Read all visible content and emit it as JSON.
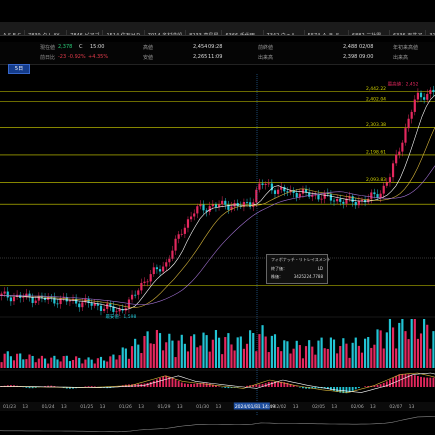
{
  "tabs": [
    {
      "label": "A S E C"
    },
    {
      "label": "7839 ク L AY..."
    },
    {
      "label": "7846 ピアゴ"
    },
    {
      "label": "1514 住石ＨＤ"
    },
    {
      "label": "7014 名村造船"
    },
    {
      "label": "8233 高島屋"
    },
    {
      "label": "6366 千代田..."
    },
    {
      "label": "7342 ウェル..."
    },
    {
      "label": "5574 Ａ Ｂ Ｅ..."
    },
    {
      "label": "6882 三社電..."
    },
    {
      "label": "6336 石井ア"
    },
    {
      "label": "3133 海帆"
    },
    {
      "label": "1557 Ｎ Ｆ..."
    }
  ],
  "info": {
    "current_label": "現在値",
    "current_value": "2,378",
    "current_flag": "C",
    "current_time": "15:00",
    "change_label": "前日比",
    "change_value": "-23",
    "change_pct": "-0.92%",
    "change_pct2": "+4.35%",
    "high_label": "高値",
    "high_value": "2,454",
    "high_time": "09:28",
    "low_label": "安値",
    "low_value": "2,265",
    "low_time": "11:09",
    "prevclose_label": "前終値",
    "prevclose_value": "",
    "volume_label": "出来高",
    "ytd_high_label": "年初来高値",
    "ytd_high_value": "2,488",
    "ytd_high_date": "02/08",
    "ytd_low_value": "2,398",
    "ytd_low_time": "09:00",
    "ytd_low_label": "年初来安値",
    "turnover_label": "出来高"
  },
  "period_label": "5日",
  "tooltip": {
    "title": "フィボナッチ・リトレイスメント",
    "row1_label": "終了価：",
    "row1_value": "LD",
    "row2_label": "株価：",
    "row2_value": "3425224.7788"
  },
  "colors": {
    "up": "#e3285e",
    "down": "#22c4d4",
    "fib": "#d6d600",
    "ma_short": "#ffffff",
    "ma_mid": "#d6b53a",
    "ma_long": "#a070d0",
    "crosshair": "#3a90e0"
  },
  "chart_data": {
    "type": "candlestick",
    "x_tick_labels": [
      "01/23",
      "13",
      "01/24",
      "13",
      "01/25",
      "13",
      "01/26",
      "13",
      "01/29",
      "13",
      "01/30",
      "13",
      "2024/01/31 14:49",
      "13",
      "02/02",
      "13",
      "02/05",
      "13",
      "02/06",
      "13",
      "02/07",
      "13"
    ],
    "fib_levels": [
      "2,442.22",
      "2,402.04",
      "2,303.38",
      "2,198.61",
      "2,093.83"
    ],
    "fib_level_values": [
      2442.22,
      2402.04,
      2303.38,
      2198.61,
      2093.83
    ],
    "annotations": [
      {
        "label": "最安値：1,598",
        "x_frac": 0.27,
        "price": 1598
      },
      {
        "label": "最高値：2,452",
        "x_frac": 0.96,
        "price": 2452
      }
    ],
    "price_range": [
      1590,
      2470
    ],
    "price_path": [
      [
        0,
        1660
      ],
      [
        0.04,
        1655
      ],
      [
        0.08,
        1650
      ],
      [
        0.12,
        1645
      ],
      [
        0.16,
        1640
      ],
      [
        0.2,
        1630
      ],
      [
        0.24,
        1615
      ],
      [
        0.27,
        1600
      ],
      [
        0.3,
        1640
      ],
      [
        0.32,
        1700
      ],
      [
        0.36,
        1760
      ],
      [
        0.38,
        1780
      ],
      [
        0.42,
        1920
      ],
      [
        0.45,
        1990
      ],
      [
        0.48,
        2000
      ],
      [
        0.52,
        2010
      ],
      [
        0.55,
        2000
      ],
      [
        0.58,
        2020
      ],
      [
        0.6,
        2090
      ],
      [
        0.62,
        2080
      ],
      [
        0.64,
        2060
      ],
      [
        0.66,
        2060
      ],
      [
        0.7,
        2050
      ],
      [
        0.74,
        2040
      ],
      [
        0.78,
        2025
      ],
      [
        0.82,
        2020
      ],
      [
        0.85,
        2030
      ],
      [
        0.88,
        2060
      ],
      [
        0.9,
        2120
      ],
      [
        0.92,
        2220
      ],
      [
        0.94,
        2320
      ],
      [
        0.96,
        2420
      ],
      [
        1.0,
        2440
      ]
    ],
    "volume_path": [
      [
        0,
        0.3
      ],
      [
        0.05,
        0.25
      ],
      [
        0.1,
        0.2
      ],
      [
        0.15,
        0.22
      ],
      [
        0.2,
        0.18
      ],
      [
        0.25,
        0.2
      ],
      [
        0.3,
        0.45
      ],
      [
        0.35,
        0.7
      ],
      [
        0.4,
        0.55
      ],
      [
        0.45,
        0.6
      ],
      [
        0.5,
        0.65
      ],
      [
        0.55,
        0.55
      ],
      [
        0.6,
        0.75
      ],
      [
        0.65,
        0.5
      ],
      [
        0.7,
        0.45
      ],
      [
        0.75,
        0.55
      ],
      [
        0.8,
        0.5
      ],
      [
        0.85,
        0.55
      ],
      [
        0.9,
        0.85
      ],
      [
        0.95,
        0.95
      ],
      [
        1.0,
        0.8
      ]
    ],
    "osc_path": [
      [
        0,
        0.05
      ],
      [
        0.1,
        0.0
      ],
      [
        0.2,
        -0.05
      ],
      [
        0.3,
        0.1
      ],
      [
        0.38,
        0.8
      ],
      [
        0.42,
        0.4
      ],
      [
        0.5,
        0.1
      ],
      [
        0.56,
        -0.1
      ],
      [
        0.62,
        0.5
      ],
      [
        0.68,
        0.1
      ],
      [
        0.74,
        -0.2
      ],
      [
        0.8,
        -0.4
      ],
      [
        0.86,
        0.1
      ],
      [
        0.92,
        0.9
      ],
      [
        0.96,
        1.0
      ],
      [
        1.0,
        0.7
      ]
    ]
  }
}
